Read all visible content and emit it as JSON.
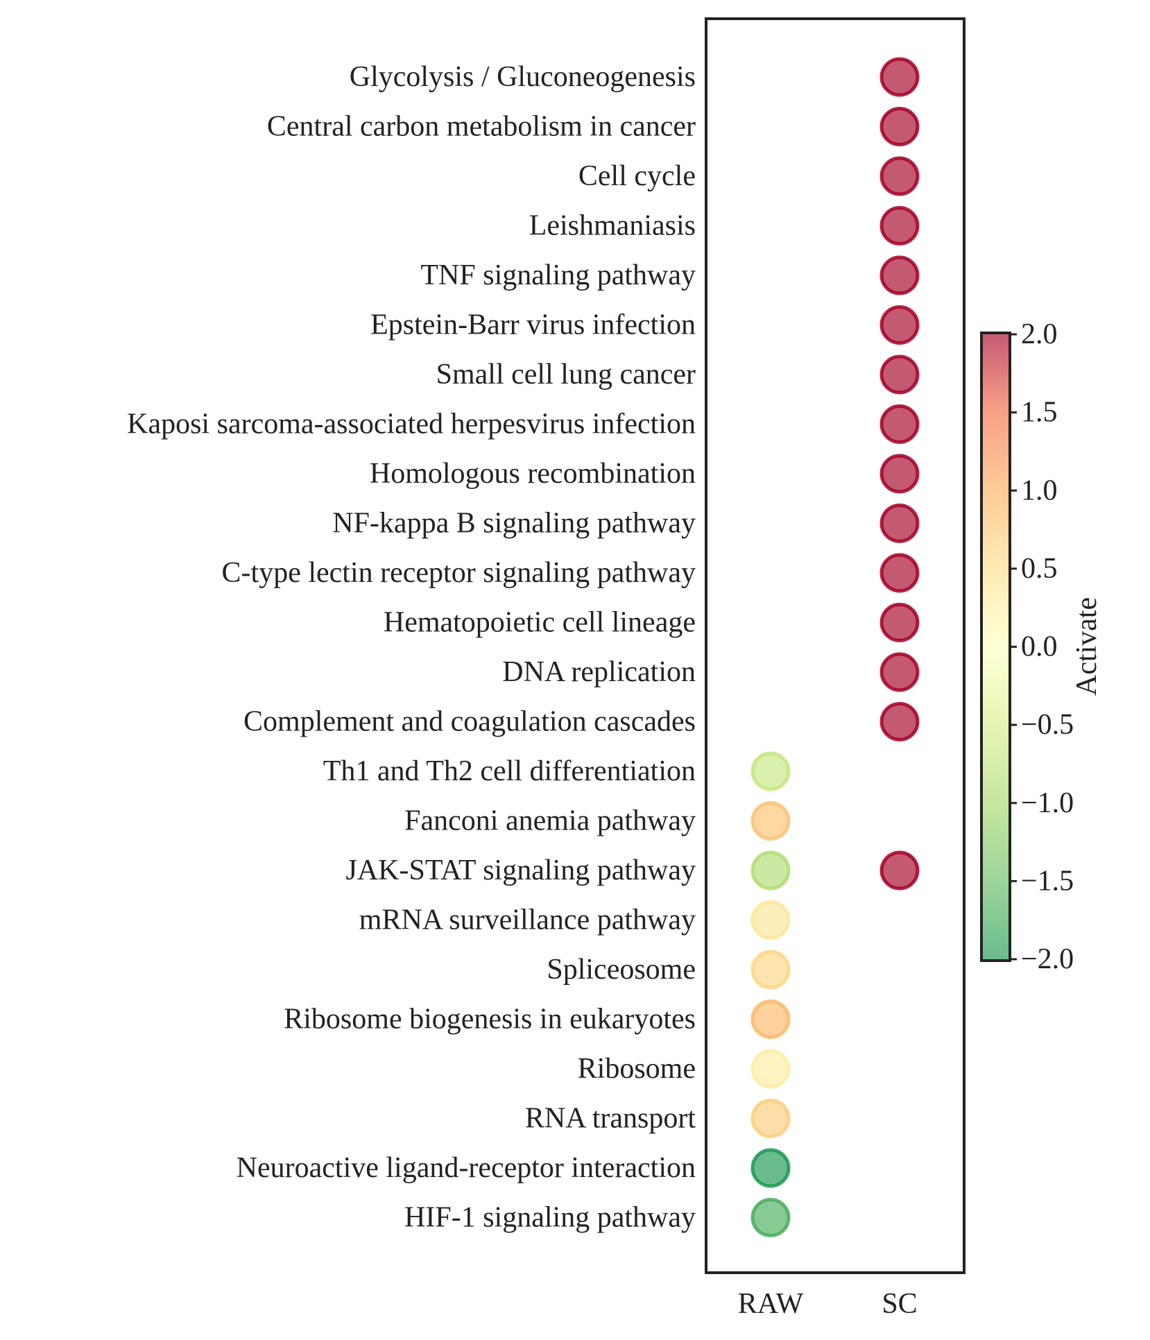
{
  "chart_data": {
    "type": "scatter",
    "subtype": "dot-matrix",
    "categories_x": [
      "RAW",
      "SC"
    ],
    "categories_y": [
      "Glycolysis / Gluconeogenesis",
      "Central carbon metabolism in cancer",
      "Cell cycle",
      "Leishmaniasis",
      "TNF signaling pathway",
      "Epstein-Barr virus infection",
      "Small cell lung cancer",
      "Kaposi sarcoma-associated herpesvirus infection",
      "Homologous recombination",
      "NF-kappa B signaling pathway",
      "C-type lectin receptor signaling pathway",
      "Hematopoietic cell lineage",
      "DNA replication",
      "Complement and coagulation cascades",
      "Th1 and Th2 cell differentiation",
      "Fanconi anemia pathway",
      "JAK-STAT signaling pathway",
      "mRNA surveillance pathway",
      "Spliceosome",
      "Ribosome biogenesis in eukaryotes",
      "Ribosome",
      "RNA transport",
      "Neuroactive ligand-receptor interaction",
      "HIF-1 signaling pathway"
    ],
    "points": [
      {
        "x": "SC",
        "y": "Glycolysis / Gluconeogenesis",
        "value": 2.0
      },
      {
        "x": "SC",
        "y": "Central carbon metabolism in cancer",
        "value": 2.0
      },
      {
        "x": "SC",
        "y": "Cell cycle",
        "value": 2.0
      },
      {
        "x": "SC",
        "y": "Leishmaniasis",
        "value": 2.0
      },
      {
        "x": "SC",
        "y": "TNF signaling pathway",
        "value": 2.0
      },
      {
        "x": "SC",
        "y": "Epstein-Barr virus infection",
        "value": 2.0
      },
      {
        "x": "SC",
        "y": "Small cell lung cancer",
        "value": 2.0
      },
      {
        "x": "SC",
        "y": "Kaposi sarcoma-associated herpesvirus infection",
        "value": 2.0
      },
      {
        "x": "SC",
        "y": "Homologous recombination",
        "value": 2.0
      },
      {
        "x": "SC",
        "y": "NF-kappa B signaling pathway",
        "value": 2.0
      },
      {
        "x": "SC",
        "y": "C-type lectin receptor signaling pathway",
        "value": 2.0
      },
      {
        "x": "SC",
        "y": "Hematopoietic cell lineage",
        "value": 2.0
      },
      {
        "x": "SC",
        "y": "DNA replication",
        "value": 2.0
      },
      {
        "x": "SC",
        "y": "Complement and coagulation cascades",
        "value": 2.0
      },
      {
        "x": "RAW",
        "y": "Th1 and Th2 cell differentiation",
        "value": -0.7
      },
      {
        "x": "RAW",
        "y": "Fanconi anemia pathway",
        "value": 0.8
      },
      {
        "x": "RAW",
        "y": "JAK-STAT signaling pathway",
        "value": -0.9
      },
      {
        "x": "SC",
        "y": "JAK-STAT signaling pathway",
        "value": 2.0
      },
      {
        "x": "RAW",
        "y": "mRNA surveillance pathway",
        "value": 0.4
      },
      {
        "x": "RAW",
        "y": "Spliceosome",
        "value": 0.6
      },
      {
        "x": "RAW",
        "y": "Ribosome biogenesis in eukaryotes",
        "value": 0.9
      },
      {
        "x": "RAW",
        "y": "Ribosome",
        "value": 0.3
      },
      {
        "x": "RAW",
        "y": "RNA transport",
        "value": 0.7
      },
      {
        "x": "RAW",
        "y": "Neuroactive ligand-receptor interaction",
        "value": -2.0
      },
      {
        "x": "RAW",
        "y": "HIF-1 signaling pathway",
        "value": -1.7
      }
    ],
    "colorbar": {
      "label": "Activate",
      "range": [
        -2.0,
        2.0
      ],
      "ticks": [
        "2.0",
        "1.5",
        "1.0",
        "0.5",
        "0.0",
        "−0.5",
        "−1.0",
        "−1.5",
        "−2.0"
      ],
      "colormap": "RdYlGn_r",
      "stops": [
        "#1a9850",
        "#66bd63",
        "#a6d96a",
        "#d9ef8b",
        "#ffffbf",
        "#fee08b",
        "#fdae61",
        "#f46d43",
        "#a50026"
      ]
    }
  }
}
